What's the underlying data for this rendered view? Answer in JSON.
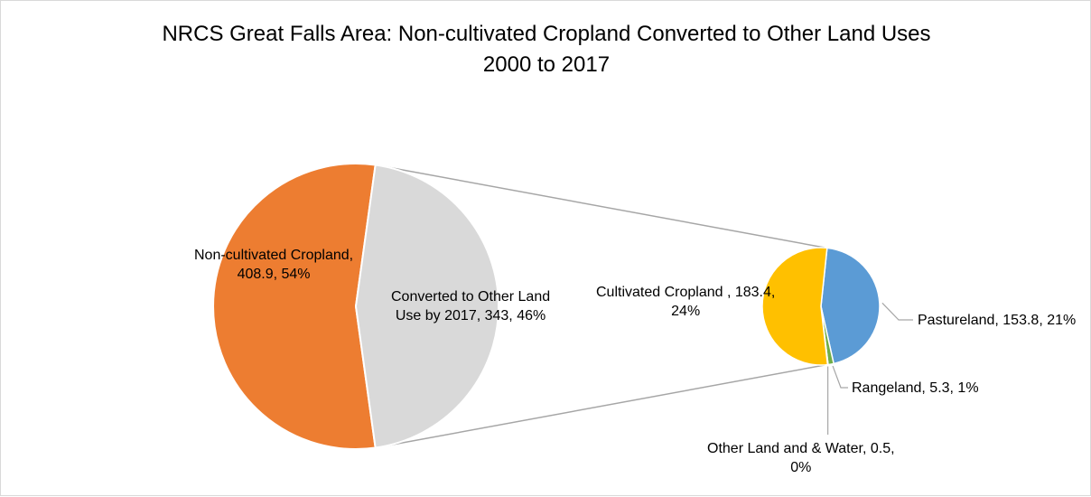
{
  "chart": {
    "title_line1": "NRCS Great Falls Area: Non-cultivated Cropland Converted to Other Land Uses",
    "title_line2": "2000 to 2017"
  },
  "chart_data": {
    "type": "pie",
    "subtype": "pie-of-pie",
    "title": "NRCS Great Falls Area: Non-cultivated Cropland Converted to Other Land Uses 2000 to 2017",
    "main_pie": {
      "slices": [
        {
          "name": "Non-cultivated Cropland",
          "value": 408.9,
          "percent": "54%",
          "color": "#ED7D31",
          "label_lines": [
            "Non-cultivated Cropland,",
            "408.9, 54%"
          ]
        },
        {
          "name": "Converted to Other Land Use by 2017",
          "value": 343,
          "percent": "46%",
          "color": "#D9D9D9",
          "label_lines": [
            "Converted to Other Land",
            "Use by 2017, 343, 46%"
          ]
        }
      ]
    },
    "secondary_pie": {
      "slices": [
        {
          "name": "Pastureland",
          "value": 153.8,
          "percent": "21%",
          "color": "#5B9BD5",
          "label_lines": [
            "Pastureland, 153.8, 21%"
          ]
        },
        {
          "name": "Rangeland",
          "value": 5.3,
          "percent": "1%",
          "color": "#70AD47",
          "label_lines": [
            "Rangeland, 5.3, 1%"
          ]
        },
        {
          "name": "Other Land and & Water",
          "value": 0.5,
          "percent": "0%",
          "color": "#4472C4",
          "label_lines": [
            "Other Land and & Water, 0.5,",
            "0%"
          ]
        },
        {
          "name": "Cultivated Cropland",
          "value": 183.4,
          "percent": "24%",
          "color": "#FFC000",
          "label_lines": [
            "Cultivated Cropland , 183.4,",
            "24%"
          ]
        }
      ]
    },
    "legend": "none",
    "colors": {
      "connector": "#A6A6A6",
      "slice_border": "#FFFFFF",
      "leader_line": "#A6A6A6"
    }
  }
}
